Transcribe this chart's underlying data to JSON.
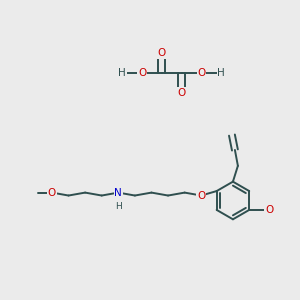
{
  "bg_color": "#ebebeb",
  "bond_color": "#2f4f4f",
  "bond_width": 1.4,
  "atom_colors": {
    "O": "#cc0000",
    "N": "#0000cc",
    "H": "#2f4f4f",
    "C": "#2f4f4f"
  },
  "font_size_atom": 7.5,
  "font_size_H": 6.5
}
